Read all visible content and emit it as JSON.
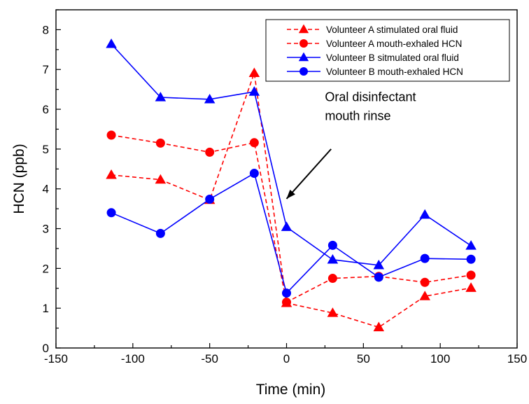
{
  "chart_data": {
    "type": "line",
    "xlabel": "Time (min)",
    "ylabel": "HCN (ppb)",
    "xlim": [
      -150,
      150
    ],
    "ylim": [
      0,
      8.5
    ],
    "xticks": [
      -150,
      -100,
      -50,
      0,
      50,
      100,
      150
    ],
    "yticks": [
      0,
      1,
      2,
      3,
      4,
      5,
      6,
      7,
      8
    ],
    "xtick_labels": [
      "-150",
      "-100",
      "-50",
      "0",
      "50",
      "100",
      "150"
    ],
    "ytick_labels": [
      "0",
      "1",
      "2",
      "3",
      "4",
      "5",
      "6",
      "7",
      "8"
    ],
    "grid": false,
    "legend_position": "top-right",
    "series": [
      {
        "name": "Volunteer A stimulated oral fluid",
        "color": "#ff0000",
        "line_style": "dashed",
        "marker": "triangle",
        "x": [
          -114,
          -82,
          -50,
          -21,
          0,
          30,
          60,
          90,
          120
        ],
        "y": [
          4.35,
          4.23,
          3.72,
          6.91,
          1.13,
          0.88,
          0.52,
          1.3,
          1.51
        ]
      },
      {
        "name": "Volunteer A mouth-exhaled HCN",
        "color": "#ff0000",
        "line_style": "dashed",
        "marker": "circle",
        "x": [
          -114,
          -82,
          -50,
          -21,
          0,
          30,
          60,
          90,
          120
        ],
        "y": [
          5.35,
          5.15,
          4.92,
          5.16,
          1.15,
          1.75,
          1.8,
          1.65,
          1.83
        ]
      },
      {
        "name": "Volunteer B sitmulated oral fluid",
        "color": "#0000ff",
        "line_style": "solid",
        "marker": "triangle",
        "x": [
          -114,
          -82,
          -50,
          -21,
          0,
          30,
          60,
          90,
          120
        ],
        "y": [
          7.64,
          6.3,
          6.25,
          6.44,
          3.04,
          2.22,
          2.08,
          3.35,
          2.57
        ]
      },
      {
        "name": "Volunteer B mouth-exhaled HCN",
        "color": "#0000ff",
        "line_style": "solid",
        "marker": "circle",
        "x": [
          -114,
          -82,
          -50,
          -21,
          0,
          30,
          60,
          90,
          120
        ],
        "y": [
          3.4,
          2.88,
          3.74,
          4.39,
          1.38,
          2.58,
          1.78,
          2.25,
          2.23
        ]
      }
    ],
    "annotations": [
      {
        "text_lines": [
          "Oral disinfectant",
          "mouth rinse"
        ],
        "arrow_from": [
          29,
          5.0
        ],
        "arrow_to": [
          0,
          3.75
        ]
      }
    ]
  }
}
